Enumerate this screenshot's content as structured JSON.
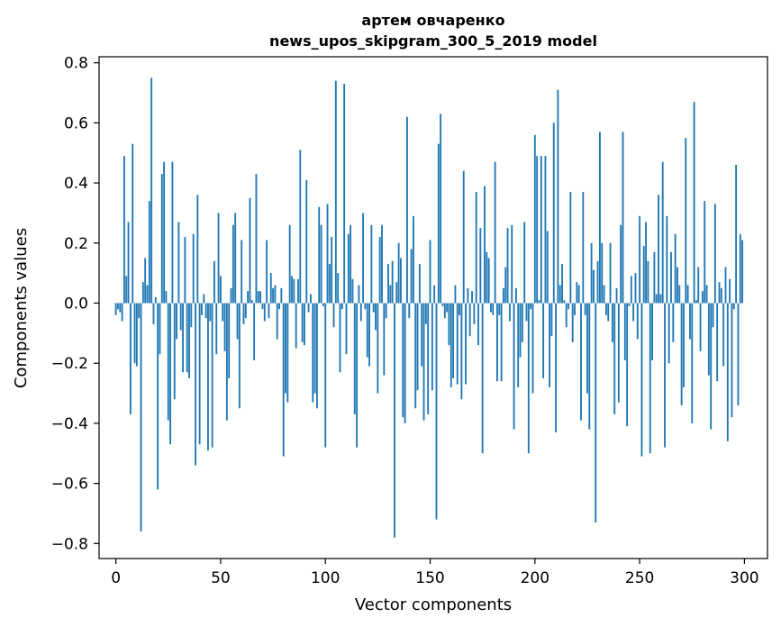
{
  "chart_data": {
    "type": "bar",
    "title_line1": "артем овчаренко",
    "title_line2": "news_upos_skipgram_300_5_2019 model",
    "xlabel": "Vector components",
    "ylabel": "Components values",
    "xlim": [
      -8,
      311
    ],
    "ylim": [
      -0.85,
      0.82
    ],
    "xticks": [
      0,
      50,
      100,
      150,
      200,
      250,
      300
    ],
    "xtick_labels": [
      "0",
      "50",
      "100",
      "150",
      "200",
      "250",
      "300"
    ],
    "yticks": [
      -0.8,
      -0.6,
      -0.4,
      -0.2,
      0.0,
      0.2,
      0.4,
      0.6,
      0.8
    ],
    "ytick_labels": [
      "−0.8",
      "−0.6",
      "−0.4",
      "−0.2",
      "0.0",
      "0.2",
      "0.4",
      "0.6",
      "0.8"
    ],
    "grid": false,
    "bar_color": "#1f77b4",
    "values": [
      -0.04,
      -0.02,
      -0.03,
      -0.06,
      0.49,
      0.09,
      0.27,
      -0.37,
      0.53,
      -0.2,
      -0.21,
      -0.05,
      -0.76,
      0.07,
      0.15,
      0.06,
      0.34,
      0.75,
      -0.07,
      0.02,
      -0.62,
      -0.17,
      0.43,
      0.47,
      0.04,
      -0.39,
      -0.47,
      0.47,
      -0.32,
      -0.12,
      0.27,
      -0.09,
      -0.23,
      0.22,
      -0.23,
      -0.25,
      -0.08,
      0.23,
      -0.54,
      0.36,
      -0.47,
      -0.04,
      0.03,
      -0.05,
      -0.49,
      -0.06,
      -0.48,
      0.14,
      -0.17,
      0.3,
      0.09,
      -0.06,
      -0.16,
      -0.39,
      -0.25,
      0.05,
      0.26,
      0.3,
      -0.12,
      -0.35,
      0.21,
      -0.07,
      -0.05,
      0.04,
      0.35,
      0.01,
      -0.19,
      0.43,
      0.04,
      0.04,
      -0.02,
      -0.06,
      0.21,
      -0.05,
      0.1,
      0.05,
      0.06,
      -0.12,
      -0.02,
      0.05,
      -0.51,
      -0.3,
      -0.33,
      0.26,
      0.09,
      0.08,
      -0.15,
      0.08,
      0.51,
      -0.13,
      -0.14,
      0.41,
      -0.03,
      0.03,
      -0.33,
      -0.3,
      -0.35,
      0.32,
      0.26,
      -0.01,
      -0.48,
      0.33,
      0.13,
      0.22,
      -0.08,
      0.74,
      0.1,
      -0.23,
      -0.02,
      0.73,
      -0.17,
      0.23,
      0.26,
      0.08,
      -0.37,
      -0.48,
      0.06,
      -0.06,
      0.3,
      -0.02,
      -0.18,
      -0.21,
      0.26,
      -0.03,
      -0.09,
      -0.3,
      0.22,
      0.26,
      -0.24,
      -0.05,
      0.13,
      0.06,
      0.14,
      -0.78,
      0.07,
      0.2,
      0.15,
      -0.38,
      -0.4,
      0.62,
      -0.05,
      0.18,
      0.29,
      -0.35,
      -0.29,
      0.13,
      -0.21,
      -0.39,
      -0.07,
      -0.37,
      0.21,
      -0.29,
      0.06,
      -0.72,
      0.53,
      0.63,
      -0.01,
      -0.05,
      -0.03,
      -0.14,
      -0.28,
      -0.25,
      0.06,
      -0.27,
      -0.04,
      -0.32,
      0.44,
      -0.27,
      0.05,
      -0.11,
      0.04,
      -0.07,
      0.37,
      -0.14,
      0.25,
      -0.5,
      0.39,
      0.17,
      0.15,
      -0.03,
      -0.04,
      0.47,
      -0.26,
      -0.04,
      -0.26,
      0.05,
      0.12,
      0.25,
      -0.06,
      0.26,
      -0.42,
      0.05,
      -0.28,
      -0.18,
      -0.13,
      0.27,
      -0.06,
      -0.5,
      -0.02,
      -0.3,
      0.56,
      0.49,
      0.01,
      0.49,
      -0.25,
      0.49,
      0.24,
      -0.28,
      -0.11,
      0.6,
      -0.43,
      0.71,
      0.06,
      0.13,
      0.01,
      -0.08,
      -0.02,
      0.37,
      -0.13,
      -0.04,
      0.07,
      0.06,
      -0.39,
      0.37,
      -0.04,
      -0.3,
      -0.42,
      0.2,
      0.11,
      -0.73,
      0.14,
      0.57,
      0.2,
      0.06,
      -0.04,
      -0.06,
      0.2,
      -0.13,
      -0.37,
      0.05,
      -0.33,
      0.26,
      0.57,
      -0.19,
      -0.41,
      -0.01,
      0.09,
      -0.06,
      0.1,
      -0.12,
      0.29,
      -0.51,
      0.19,
      0.27,
      0.14,
      -0.5,
      -0.19,
      0.17,
      0.03,
      0.36,
      0.03,
      0.47,
      -0.48,
      0.29,
      -0.2,
      0.17,
      -0.13,
      0.23,
      0.12,
      0.06,
      -0.34,
      -0.28,
      0.55,
      0.06,
      -0.12,
      -0.4,
      0.67,
      0.01,
      0.12,
      -0.16,
      0.04,
      0.34,
      0.06,
      -0.24,
      -0.42,
      -0.08,
      0.33,
      -0.26,
      0.07,
      0.05,
      -0.21,
      0.12,
      -0.46,
      0.08,
      -0.38,
      -0.02,
      0.46,
      -0.34,
      0.23,
      0.21
    ]
  }
}
